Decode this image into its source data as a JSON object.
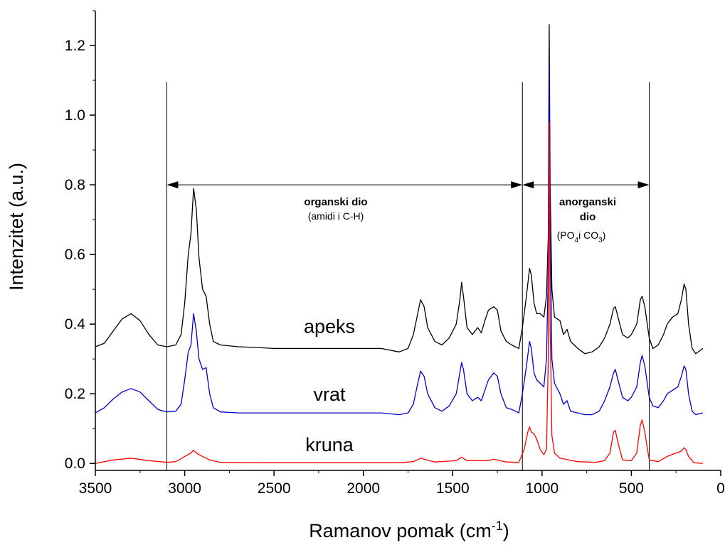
{
  "chart_data": {
    "type": "line",
    "xlabel": "Ramanov pomak (cm",
    "xlabel_sup": "-1",
    "xlabel_close": ")",
    "ylabel": "Intenzitet (a.u.)",
    "xlim": [
      3500,
      0
    ],
    "ylim": [
      -0.02,
      1.3
    ],
    "x_ticks": [
      3500,
      3000,
      2500,
      2000,
      1500,
      1000,
      500,
      0
    ],
    "y_ticks": [
      0.0,
      0.2,
      0.4,
      0.6,
      0.8,
      1.0,
      1.2
    ],
    "x_tick_labels": [
      "3500",
      "3000",
      "2500",
      "2000",
      "1500",
      "1000",
      "500",
      "0"
    ],
    "y_tick_labels": [
      "0.0",
      "0.2",
      "0.4",
      "0.6",
      "0.8",
      "1.0",
      "1.2"
    ],
    "series": [
      {
        "name": "apeks",
        "color": "#000000",
        "points": [
          [
            3500,
            0.335
          ],
          [
            3450,
            0.345
          ],
          [
            3400,
            0.38
          ],
          [
            3350,
            0.415
          ],
          [
            3300,
            0.43
          ],
          [
            3250,
            0.41
          ],
          [
            3200,
            0.37
          ],
          [
            3150,
            0.34
          ],
          [
            3100,
            0.335
          ],
          [
            3050,
            0.34
          ],
          [
            3020,
            0.37
          ],
          [
            3000,
            0.46
          ],
          [
            2980,
            0.6
          ],
          [
            2965,
            0.66
          ],
          [
            2950,
            0.79
          ],
          [
            2935,
            0.73
          ],
          [
            2920,
            0.59
          ],
          [
            2900,
            0.5
          ],
          [
            2880,
            0.48
          ],
          [
            2860,
            0.4
          ],
          [
            2840,
            0.35
          ],
          [
            2800,
            0.34
          ],
          [
            2700,
            0.335
          ],
          [
            2600,
            0.333
          ],
          [
            2500,
            0.33
          ],
          [
            2400,
            0.33
          ],
          [
            2300,
            0.33
          ],
          [
            2200,
            0.33
          ],
          [
            2100,
            0.33
          ],
          [
            2000,
            0.33
          ],
          [
            1900,
            0.33
          ],
          [
            1800,
            0.32
          ],
          [
            1750,
            0.33
          ],
          [
            1720,
            0.37
          ],
          [
            1700,
            0.42
          ],
          [
            1680,
            0.47
          ],
          [
            1660,
            0.45
          ],
          [
            1640,
            0.39
          ],
          [
            1600,
            0.35
          ],
          [
            1560,
            0.34
          ],
          [
            1520,
            0.36
          ],
          [
            1480,
            0.4
          ],
          [
            1460,
            0.47
          ],
          [
            1450,
            0.52
          ],
          [
            1440,
            0.48
          ],
          [
            1420,
            0.39
          ],
          [
            1390,
            0.37
          ],
          [
            1360,
            0.39
          ],
          [
            1340,
            0.375
          ],
          [
            1320,
            0.41
          ],
          [
            1300,
            0.44
          ],
          [
            1270,
            0.45
          ],
          [
            1250,
            0.44
          ],
          [
            1230,
            0.38
          ],
          [
            1200,
            0.35
          ],
          [
            1170,
            0.34
          ],
          [
            1130,
            0.33
          ],
          [
            1110,
            0.39
          ],
          [
            1090,
            0.47
          ],
          [
            1070,
            0.56
          ],
          [
            1060,
            0.54
          ],
          [
            1045,
            0.46
          ],
          [
            1030,
            0.43
          ],
          [
            1010,
            0.43
          ],
          [
            990,
            0.42
          ],
          [
            975,
            0.48
          ],
          [
            965,
            0.65
          ],
          [
            960,
            1.26
          ],
          [
            955,
            0.8
          ],
          [
            945,
            0.5
          ],
          [
            930,
            0.42
          ],
          [
            900,
            0.41
          ],
          [
            880,
            0.37
          ],
          [
            860,
            0.385
          ],
          [
            840,
            0.35
          ],
          [
            800,
            0.33
          ],
          [
            760,
            0.315
          ],
          [
            720,
            0.32
          ],
          [
            680,
            0.335
          ],
          [
            650,
            0.36
          ],
          [
            620,
            0.4
          ],
          [
            600,
            0.445
          ],
          [
            590,
            0.45
          ],
          [
            575,
            0.42
          ],
          [
            550,
            0.37
          ],
          [
            520,
            0.36
          ],
          [
            500,
            0.37
          ],
          [
            470,
            0.4
          ],
          [
            450,
            0.47
          ],
          [
            440,
            0.48
          ],
          [
            425,
            0.45
          ],
          [
            400,
            0.36
          ],
          [
            380,
            0.33
          ],
          [
            350,
            0.34
          ],
          [
            320,
            0.37
          ],
          [
            300,
            0.4
          ],
          [
            270,
            0.42
          ],
          [
            240,
            0.43
          ],
          [
            220,
            0.47
          ],
          [
            205,
            0.515
          ],
          [
            195,
            0.5
          ],
          [
            180,
            0.4
          ],
          [
            160,
            0.33
          ],
          [
            140,
            0.315
          ],
          [
            100,
            0.33
          ]
        ]
      },
      {
        "name": "vrat",
        "color": "#0000cc",
        "points": [
          [
            3500,
            0.145
          ],
          [
            3450,
            0.16
          ],
          [
            3400,
            0.185
          ],
          [
            3350,
            0.205
          ],
          [
            3300,
            0.215
          ],
          [
            3250,
            0.205
          ],
          [
            3200,
            0.18
          ],
          [
            3150,
            0.155
          ],
          [
            3100,
            0.148
          ],
          [
            3050,
            0.15
          ],
          [
            3020,
            0.17
          ],
          [
            3000,
            0.24
          ],
          [
            2980,
            0.32
          ],
          [
            2965,
            0.34
          ],
          [
            2950,
            0.43
          ],
          [
            2935,
            0.38
          ],
          [
            2920,
            0.3
          ],
          [
            2900,
            0.27
          ],
          [
            2880,
            0.275
          ],
          [
            2860,
            0.2
          ],
          [
            2840,
            0.16
          ],
          [
            2800,
            0.148
          ],
          [
            2700,
            0.145
          ],
          [
            2600,
            0.145
          ],
          [
            2500,
            0.145
          ],
          [
            2400,
            0.145
          ],
          [
            2300,
            0.145
          ],
          [
            2200,
            0.145
          ],
          [
            2100,
            0.145
          ],
          [
            2000,
            0.145
          ],
          [
            1900,
            0.145
          ],
          [
            1800,
            0.14
          ],
          [
            1750,
            0.145
          ],
          [
            1720,
            0.17
          ],
          [
            1700,
            0.22
          ],
          [
            1680,
            0.265
          ],
          [
            1660,
            0.25
          ],
          [
            1640,
            0.2
          ],
          [
            1600,
            0.16
          ],
          [
            1560,
            0.15
          ],
          [
            1520,
            0.165
          ],
          [
            1480,
            0.2
          ],
          [
            1460,
            0.26
          ],
          [
            1450,
            0.29
          ],
          [
            1440,
            0.27
          ],
          [
            1420,
            0.2
          ],
          [
            1390,
            0.18
          ],
          [
            1360,
            0.19
          ],
          [
            1340,
            0.18
          ],
          [
            1320,
            0.21
          ],
          [
            1300,
            0.24
          ],
          [
            1270,
            0.26
          ],
          [
            1250,
            0.25
          ],
          [
            1230,
            0.2
          ],
          [
            1200,
            0.16
          ],
          [
            1170,
            0.155
          ],
          [
            1130,
            0.145
          ],
          [
            1110,
            0.2
          ],
          [
            1090,
            0.27
          ],
          [
            1070,
            0.35
          ],
          [
            1060,
            0.33
          ],
          [
            1045,
            0.26
          ],
          [
            1030,
            0.24
          ],
          [
            1010,
            0.23
          ],
          [
            990,
            0.22
          ],
          [
            975,
            0.3
          ],
          [
            965,
            0.55
          ],
          [
            960,
            1.15
          ],
          [
            955,
            0.7
          ],
          [
            945,
            0.3
          ],
          [
            930,
            0.23
          ],
          [
            900,
            0.2
          ],
          [
            880,
            0.17
          ],
          [
            860,
            0.18
          ],
          [
            840,
            0.15
          ],
          [
            800,
            0.145
          ],
          [
            760,
            0.14
          ],
          [
            720,
            0.14
          ],
          [
            680,
            0.15
          ],
          [
            650,
            0.18
          ],
          [
            620,
            0.22
          ],
          [
            600,
            0.26
          ],
          [
            590,
            0.27
          ],
          [
            575,
            0.24
          ],
          [
            550,
            0.19
          ],
          [
            520,
            0.18
          ],
          [
            500,
            0.19
          ],
          [
            470,
            0.22
          ],
          [
            450,
            0.29
          ],
          [
            440,
            0.31
          ],
          [
            425,
            0.28
          ],
          [
            400,
            0.19
          ],
          [
            380,
            0.165
          ],
          [
            350,
            0.16
          ],
          [
            320,
            0.18
          ],
          [
            300,
            0.2
          ],
          [
            270,
            0.21
          ],
          [
            240,
            0.22
          ],
          [
            220,
            0.25
          ],
          [
            205,
            0.28
          ],
          [
            195,
            0.27
          ],
          [
            180,
            0.2
          ],
          [
            160,
            0.15
          ],
          [
            140,
            0.14
          ],
          [
            100,
            0.145
          ]
        ]
      },
      {
        "name": "kruna",
        "color": "#ff0000",
        "points": [
          [
            3500,
            0.0
          ],
          [
            3450,
            0.005
          ],
          [
            3400,
            0.01
          ],
          [
            3300,
            0.015
          ],
          [
            3200,
            0.008
          ],
          [
            3100,
            0.003
          ],
          [
            3050,
            0.005
          ],
          [
            3000,
            0.02
          ],
          [
            2965,
            0.03
          ],
          [
            2950,
            0.038
          ],
          [
            2935,
            0.03
          ],
          [
            2900,
            0.02
          ],
          [
            2860,
            0.01
          ],
          [
            2800,
            0.003
          ],
          [
            2600,
            0.002
          ],
          [
            2400,
            0.002
          ],
          [
            2200,
            0.002
          ],
          [
            2000,
            0.002
          ],
          [
            1800,
            0.002
          ],
          [
            1720,
            0.005
          ],
          [
            1680,
            0.015
          ],
          [
            1660,
            0.012
          ],
          [
            1600,
            0.004
          ],
          [
            1480,
            0.008
          ],
          [
            1450,
            0.018
          ],
          [
            1420,
            0.008
          ],
          [
            1300,
            0.008
          ],
          [
            1270,
            0.012
          ],
          [
            1200,
            0.004
          ],
          [
            1130,
            0.003
          ],
          [
            1100,
            0.04
          ],
          [
            1080,
            0.09
          ],
          [
            1070,
            0.105
          ],
          [
            1060,
            0.09
          ],
          [
            1045,
            0.085
          ],
          [
            1030,
            0.07
          ],
          [
            1010,
            0.04
          ],
          [
            990,
            0.025
          ],
          [
            975,
            0.04
          ],
          [
            965,
            0.3
          ],
          [
            960,
            0.98
          ],
          [
            955,
            0.4
          ],
          [
            945,
            0.08
          ],
          [
            930,
            0.03
          ],
          [
            900,
            0.015
          ],
          [
            850,
            0.01
          ],
          [
            800,
            0.005
          ],
          [
            700,
            0.003
          ],
          [
            650,
            0.008
          ],
          [
            620,
            0.03
          ],
          [
            600,
            0.09
          ],
          [
            590,
            0.095
          ],
          [
            575,
            0.06
          ],
          [
            550,
            0.01
          ],
          [
            500,
            0.008
          ],
          [
            470,
            0.03
          ],
          [
            450,
            0.11
          ],
          [
            440,
            0.125
          ],
          [
            425,
            0.09
          ],
          [
            400,
            0.01
          ],
          [
            350,
            0.005
          ],
          [
            300,
            0.02
          ],
          [
            250,
            0.03
          ],
          [
            220,
            0.035
          ],
          [
            205,
            0.045
          ],
          [
            195,
            0.04
          ],
          [
            180,
            0.02
          ],
          [
            150,
            0.002
          ],
          [
            100,
            0.0
          ]
        ]
      }
    ],
    "trace_labels": [
      {
        "text": "apeks",
        "x": 2190,
        "y": 0.375
      },
      {
        "text": "vrat",
        "x": 2190,
        "y": 0.18
      },
      {
        "text": "kruna",
        "x": 2190,
        "y": 0.035
      }
    ],
    "vertical_markers": [
      3100,
      1110,
      400
    ],
    "marker_top": 1.095,
    "regions": [
      {
        "from": 3100,
        "to": 1110,
        "y": 0.8,
        "title": "organski dio",
        "subtitle": "(amidi i C-H)"
      },
      {
        "from": 1110,
        "to": 400,
        "y": 0.8,
        "title_lines": [
          "anorganski",
          "dio"
        ],
        "subtitle": "(PO4 i CO3)"
      }
    ]
  },
  "labels": {
    "region1_title": "organski dio",
    "region1_sub": "(amidi i C-H)",
    "region2_title_l1": "anorganski",
    "region2_title_l2": "dio",
    "region2_sub_a": "(PO",
    "region2_sub_a_sub": "4",
    "region2_sub_b": "i CO",
    "region2_sub_b_sub": "3",
    "region2_sub_c": ")"
  }
}
